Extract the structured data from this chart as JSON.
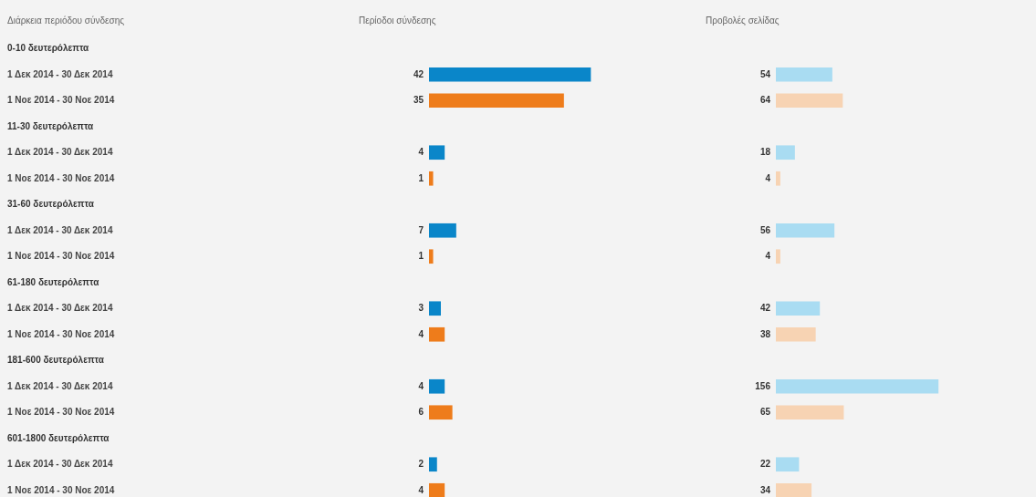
{
  "chart_data": [
    {
      "type": "bar",
      "orientation": "horizontal",
      "title": "Περίοδοι σύνδεσης",
      "ylabel": "Διάρκεια περιόδου σύνδεσης",
      "categories": [
        "0-10 δευτερόλεπτα",
        "1 Δεκ 2014 - 30 Δεκ 2014",
        "1 Νοε 2014 - 30 Νοε 2014",
        "11-30 δευτερόλεπτα",
        "1 Δεκ 2014 - 30 Δεκ 2014",
        "1 Νοε 2014 - 30 Νοε 2014",
        "31-60 δευτερόλεπτα",
        "1 Δεκ 2014 - 30 Δεκ 2014",
        "1 Νοε 2014 - 30 Νοε 2014",
        "61-180 δευτερόλεπτα",
        "1 Δεκ 2014 - 30 Δεκ 2014",
        "1 Νοε 2014 - 30 Νοε 2014",
        "181-600 δευτερόλεπτα",
        "1 Δεκ 2014 - 30 Δεκ 2014",
        "1 Νοε 2014 - 30 Νοε 2014",
        "601-1800 δευτερόλεπτα",
        "1 Δεκ 2014 - 30 Δεκ 2014",
        "1 Νοε 2014 - 30 Νοε 2014"
      ],
      "values": [
        null,
        42,
        35,
        null,
        4,
        1,
        null,
        7,
        1,
        null,
        3,
        4,
        null,
        4,
        6,
        null,
        2,
        4
      ],
      "colors": [
        null,
        "#0a86c9",
        "#ee7c1b",
        null,
        "#0a86c9",
        "#ee7c1b",
        null,
        "#0a86c9",
        "#ee7c1b",
        null,
        "#0a86c9",
        "#ee7c1b",
        null,
        "#0a86c9",
        "#ee7c1b",
        null,
        "#0a86c9",
        "#ee7c1b"
      ],
      "data_labels": true
    },
    {
      "type": "bar",
      "orientation": "horizontal",
      "title": "Προβολές σελίδας",
      "categories": [
        "0-10 δευτερόλεπτα",
        "1 Δεκ 2014 - 30 Δεκ 2014",
        "1 Νοε 2014 - 30 Νοε 2014",
        "11-30 δευτερόλεπτα",
        "1 Δεκ 2014 - 30 Δεκ 2014",
        "1 Νοε 2014 - 30 Νοε 2014",
        "31-60 δευτερόλεπτα",
        "1 Δεκ 2014 - 30 Δεκ 2014",
        "1 Νοε 2014 - 30 Νοε 2014",
        "61-180 δευτερόλεπτα",
        "1 Δεκ 2014 - 30 Δεκ 2014",
        "1 Νοε 2014 - 30 Νοε 2014",
        "181-600 δευτερόλεπτα",
        "1 Δεκ 2014 - 30 Δεκ 2014",
        "1 Νοε 2014 - 30 Νοε 2014",
        "601-1800 δευτερόλεπτα",
        "1 Δεκ 2014 - 30 Δεκ 2014",
        "1 Νοε 2014 - 30 Νοε 2014"
      ],
      "values": [
        null,
        54,
        64,
        null,
        18,
        4,
        null,
        56,
        4,
        null,
        42,
        38,
        null,
        156,
        65,
        null,
        22,
        34
      ],
      "colors": [
        null,
        "#a9dcf2",
        "#f7d3b3",
        null,
        "#a9dcf2",
        "#f7d3b3",
        null,
        "#a9dcf2",
        "#f7d3b3",
        null,
        "#a9dcf2",
        "#f7d3b3",
        null,
        "#a9dcf2",
        "#f7d3b3",
        null,
        "#a9dcf2",
        "#f7d3b3"
      ],
      "data_labels": true,
      "tick_labels": false
    }
  ]
}
